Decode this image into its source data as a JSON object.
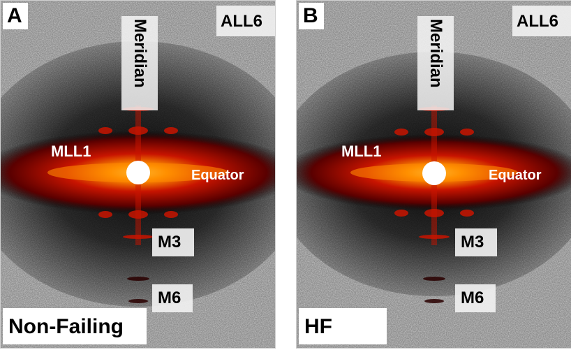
{
  "panels": [
    {
      "letter": "A",
      "corner_label": "ALL6",
      "meridian": "Meridian",
      "mll1": "MLL1",
      "equator": "Equator",
      "m3": "M3",
      "m6": "M6",
      "condition": "Non-Failing"
    },
    {
      "letter": "B",
      "corner_label": "ALL6",
      "meridian": "Meridian",
      "mll1": "MLL1",
      "equator": "Equator",
      "m3": "M3",
      "m6": "M6",
      "condition": "HF"
    }
  ],
  "colors": {
    "background_noise": "#9a9a9a",
    "equator_glow": "#c81400",
    "core": "#ffcc33",
    "center_stop": "#ffffff"
  }
}
